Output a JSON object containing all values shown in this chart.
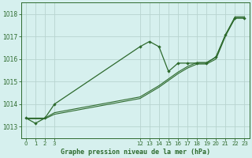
{
  "title": "Graphe pression niveau de la mer (hPa)",
  "bg_color": "#d6f0ee",
  "grid_color": "#b8d4d0",
  "line_color": "#2d6a2d",
  "ylim": [
    1012.5,
    1018.5
  ],
  "yticks": [
    1013,
    1014,
    1015,
    1016,
    1017,
    1018
  ],
  "xlim": [
    -0.5,
    23.5
  ],
  "xticks": [
    0,
    1,
    2,
    3,
    12,
    13,
    14,
    15,
    16,
    17,
    18,
    19,
    20,
    21,
    22,
    23
  ],
  "line1_x": [
    0,
    1,
    2,
    3,
    12,
    13,
    14,
    15,
    16,
    17,
    18,
    19,
    20,
    21,
    22,
    23
  ],
  "line1_y": [
    1013.35,
    1013.35,
    1013.35,
    1013.55,
    1014.25,
    1014.5,
    1014.75,
    1015.05,
    1015.35,
    1015.6,
    1015.78,
    1015.78,
    1016.0,
    1017.02,
    1017.82,
    1017.82
  ],
  "line2_x": [
    0,
    1,
    2,
    3,
    12,
    13,
    14,
    15,
    16,
    17,
    18,
    19,
    20,
    21,
    22,
    23
  ],
  "line2_y": [
    1013.38,
    1013.38,
    1013.38,
    1013.62,
    1014.32,
    1014.57,
    1014.82,
    1015.12,
    1015.42,
    1015.67,
    1015.85,
    1015.85,
    1016.08,
    1017.08,
    1017.88,
    1017.88
  ],
  "line3_x": [
    0,
    1,
    2,
    3,
    12,
    13,
    14,
    15,
    16,
    17,
    18,
    19,
    20,
    21,
    22,
    23
  ],
  "line3_y": [
    1013.38,
    1013.15,
    1013.38,
    1014.0,
    1016.55,
    1016.78,
    1016.55,
    1015.45,
    1015.82,
    1015.82,
    1015.82,
    1015.82,
    1016.1,
    1017.08,
    1017.82,
    1017.82
  ]
}
